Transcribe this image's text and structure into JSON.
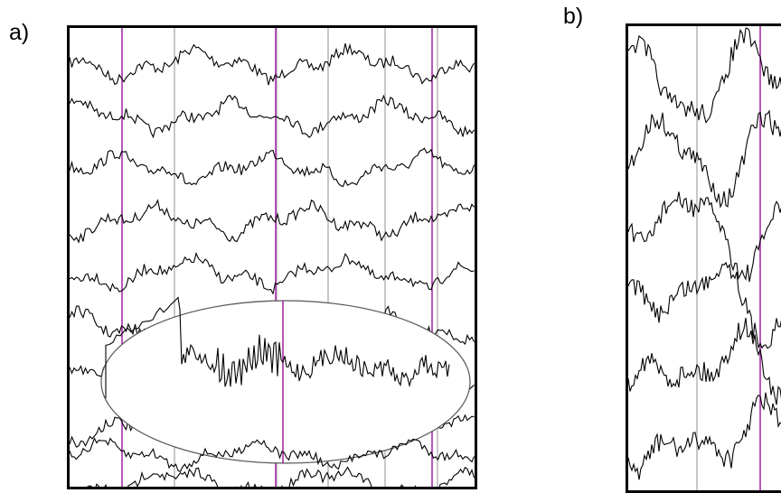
{
  "figure": {
    "panels": [
      {
        "label": "a)",
        "trace_count": 9,
        "vertical_gridlines": 7,
        "highlighted_markers": 3,
        "annotation": "ellipse-highlight",
        "description_colors": {
          "trace": "#000000",
          "marker": "#a020a0",
          "grid": "#c8c8c8"
        }
      },
      {
        "label": "b)",
        "trace_count": 6,
        "vertical_gridlines": 2,
        "highlighted_markers": 1,
        "description_colors": {
          "trace": "#000000",
          "marker": "#a020a0",
          "grid": "#c8c8c8"
        }
      }
    ]
  }
}
